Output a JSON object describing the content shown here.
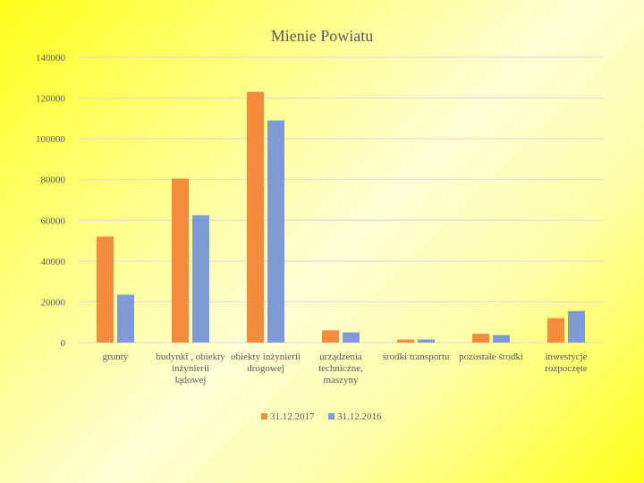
{
  "chart_data": {
    "type": "bar",
    "title": "Mienie  Powiatu",
    "categories": [
      [
        "grunty"
      ],
      [
        "budynki  , obiekty",
        "inżynierii",
        "lądowej"
      ],
      [
        "obiekty inżynierii",
        "drogowej"
      ],
      [
        "urządzenia",
        "techniczne,",
        "maszyny"
      ],
      [
        "środki transportu"
      ],
      [
        "pozostałe środki"
      ],
      [
        "inwestycje",
        "rozpoczęte"
      ]
    ],
    "series": [
      {
        "name": "31.12.2017",
        "color": "#f58b3c",
        "values": [
          52000,
          80500,
          123000,
          6000,
          1500,
          4300,
          12000
        ]
      },
      {
        "name": "31.12.2016",
        "color": "#7f9ad4",
        "values": [
          23500,
          62500,
          109000,
          5000,
          1500,
          3700,
          15500
        ]
      }
    ],
    "yticks": [
      "0",
      "20000",
      "40000",
      "60000",
      "80000",
      "100000",
      "120000",
      "140000"
    ],
    "ylim": [
      0,
      140000
    ],
    "grid": true,
    "legend_position": "bottom"
  }
}
